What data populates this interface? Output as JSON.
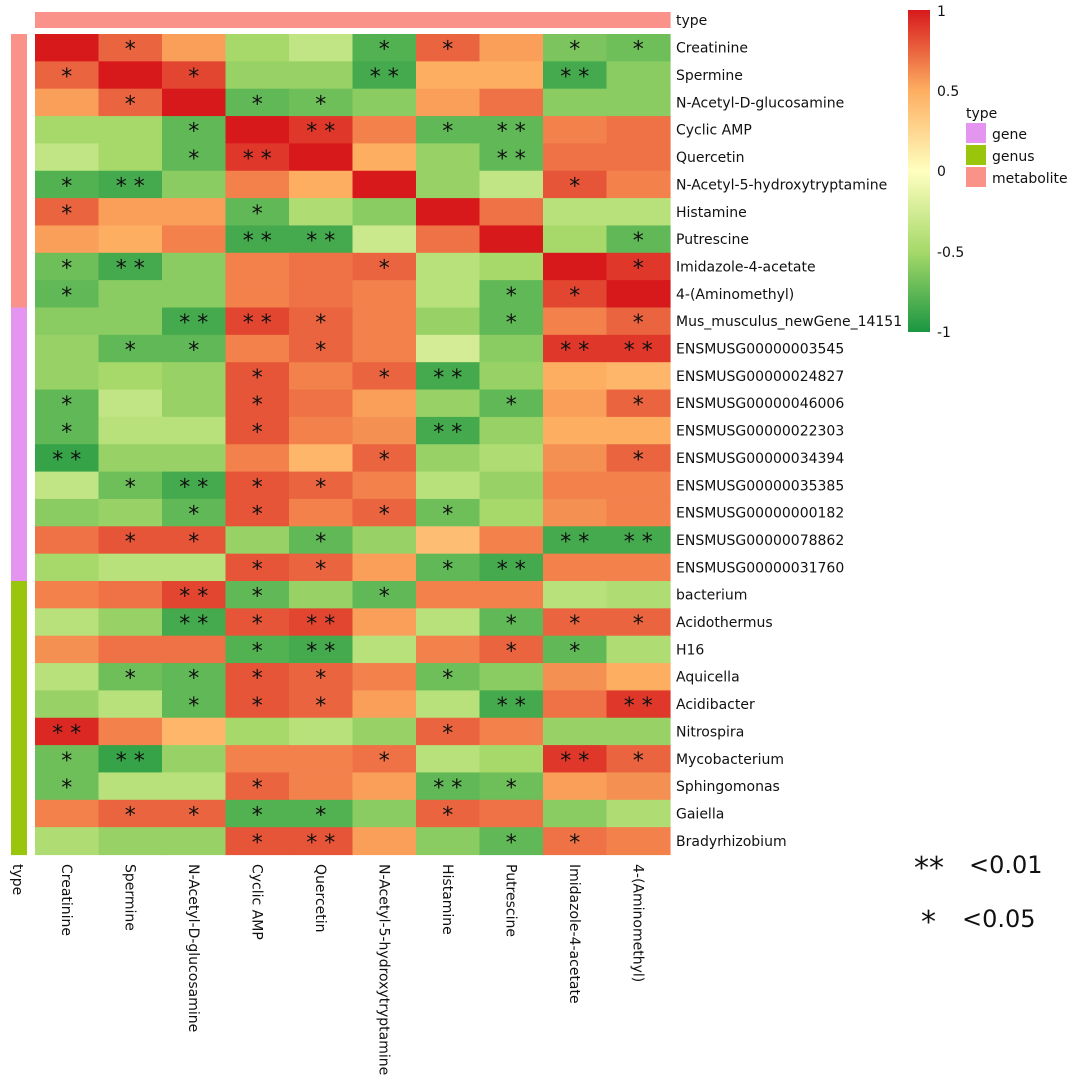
{
  "chart_data": {
    "type": "heatmap",
    "row_annotation_title": "type",
    "col_annotation_title": "type",
    "columns": [
      "Creatinine",
      "Spermine",
      "N-Acetyl-D-glucosamine",
      "Cyclic AMP",
      "Quercetin",
      "N-Acetyl-5-hydroxytryptamine",
      "Histamine",
      "Putrescine",
      "Imidazole-4-acetate",
      "4-(Aminomethyl)"
    ],
    "column_types": [
      "metabolite",
      "metabolite",
      "metabolite",
      "metabolite",
      "metabolite",
      "metabolite",
      "metabolite",
      "metabolite",
      "metabolite",
      "metabolite"
    ],
    "rows": [
      "Creatinine",
      "Spermine",
      "N-Acetyl-D-glucosamine",
      "Cyclic AMP",
      "Quercetin",
      "N-Acetyl-5-hydroxytryptamine",
      "Histamine",
      "Putrescine",
      "Imidazole-4-acetate",
      "4-(Aminomethyl)",
      "Mus_musculus_newGene_14151",
      "ENSMUSG00000003545",
      "ENSMUSG00000024827",
      "ENSMUSG00000046006",
      "ENSMUSG00000022303",
      "ENSMUSG00000034394",
      "ENSMUSG00000035385",
      "ENSMUSG00000000182",
      "ENSMUSG00000078862",
      "ENSMUSG00000031760",
      "bacterium",
      "Acidothermus",
      "H16",
      "Aquicella",
      "Acidibacter",
      "Nitrospira",
      "Mycobacterium",
      "Sphingomonas",
      "Gaiella",
      "Bradyrhizobium"
    ],
    "row_types": [
      "metabolite",
      "metabolite",
      "metabolite",
      "metabolite",
      "metabolite",
      "metabolite",
      "metabolite",
      "metabolite",
      "metabolite",
      "metabolite",
      "gene",
      "gene",
      "gene",
      "gene",
      "gene",
      "gene",
      "gene",
      "gene",
      "gene",
      "gene",
      "genus",
      "genus",
      "genus",
      "genus",
      "genus",
      "genus",
      "genus",
      "genus",
      "genus",
      "genus"
    ],
    "values": [
      [
        1.0,
        0.75,
        0.55,
        -0.5,
        -0.35,
        -0.8,
        0.75,
        0.55,
        -0.65,
        -0.7
      ],
      [
        0.75,
        1.0,
        0.85,
        -0.55,
        -0.55,
        -0.85,
        0.5,
        0.5,
        -0.85,
        -0.6
      ],
      [
        0.55,
        0.75,
        1.0,
        -0.75,
        -0.7,
        -0.6,
        0.55,
        0.7,
        -0.6,
        -0.6
      ],
      [
        -0.5,
        -0.5,
        -0.75,
        1.0,
        0.9,
        0.65,
        -0.75,
        -0.75,
        0.65,
        0.7
      ],
      [
        -0.35,
        -0.5,
        -0.75,
        0.9,
        1.0,
        0.5,
        -0.55,
        -0.75,
        0.7,
        0.7
      ],
      [
        -0.8,
        -0.85,
        -0.6,
        0.65,
        0.5,
        1.0,
        -0.55,
        -0.35,
        0.8,
        0.65
      ],
      [
        0.75,
        0.55,
        0.55,
        -0.75,
        -0.45,
        -0.6,
        1.0,
        0.7,
        -0.4,
        -0.4
      ],
      [
        0.55,
        0.5,
        0.65,
        -0.85,
        -0.85,
        -0.3,
        0.7,
        1.0,
        -0.5,
        -0.75
      ],
      [
        -0.7,
        -0.85,
        -0.6,
        0.65,
        0.7,
        0.75,
        -0.4,
        -0.5,
        1.0,
        0.9
      ],
      [
        -0.75,
        -0.6,
        -0.6,
        0.65,
        0.7,
        0.65,
        -0.4,
        -0.75,
        0.85,
        1.0
      ],
      [
        -0.6,
        -0.6,
        -0.85,
        0.85,
        0.75,
        0.65,
        -0.55,
        -0.75,
        0.65,
        0.75
      ],
      [
        -0.55,
        -0.75,
        -0.75,
        0.65,
        0.75,
        0.65,
        -0.25,
        -0.6,
        0.9,
        0.9
      ],
      [
        -0.55,
        -0.5,
        -0.55,
        0.8,
        0.65,
        0.75,
        -0.85,
        -0.55,
        0.5,
        0.45
      ],
      [
        -0.75,
        -0.35,
        -0.55,
        0.8,
        0.7,
        0.55,
        -0.55,
        -0.75,
        0.55,
        0.75
      ],
      [
        -0.75,
        -0.4,
        -0.4,
        0.8,
        0.65,
        0.6,
        -0.85,
        -0.55,
        0.5,
        0.5
      ],
      [
        -0.9,
        -0.55,
        -0.55,
        0.65,
        0.45,
        0.75,
        -0.55,
        -0.45,
        0.6,
        0.75
      ],
      [
        -0.35,
        -0.7,
        -0.85,
        0.8,
        0.75,
        0.65,
        -0.4,
        -0.55,
        0.65,
        0.65
      ],
      [
        -0.6,
        -0.55,
        -0.75,
        0.8,
        0.65,
        0.75,
        -0.7,
        -0.5,
        0.6,
        0.65
      ],
      [
        0.7,
        0.8,
        0.8,
        -0.55,
        -0.75,
        -0.55,
        0.4,
        0.65,
        -0.85,
        -0.85
      ],
      [
        -0.5,
        -0.4,
        -0.4,
        0.8,
        0.75,
        0.55,
        -0.75,
        -0.85,
        0.65,
        0.65
      ],
      [
        0.65,
        0.7,
        0.85,
        -0.75,
        -0.55,
        -0.75,
        0.65,
        0.65,
        -0.4,
        -0.45
      ],
      [
        -0.4,
        -0.55,
        -0.85,
        0.8,
        0.85,
        0.55,
        -0.4,
        -0.75,
        0.75,
        0.75
      ],
      [
        0.6,
        0.7,
        0.7,
        -0.8,
        -0.85,
        -0.4,
        0.65,
        0.75,
        -0.75,
        -0.45
      ],
      [
        -0.4,
        -0.7,
        -0.75,
        0.8,
        0.75,
        0.65,
        -0.7,
        -0.6,
        0.6,
        0.5
      ],
      [
        -0.55,
        -0.4,
        -0.75,
        0.8,
        0.75,
        0.55,
        -0.4,
        -0.85,
        0.7,
        0.9
      ],
      [
        0.95,
        0.65,
        0.45,
        -0.5,
        -0.4,
        -0.55,
        0.75,
        0.65,
        -0.55,
        -0.55
      ],
      [
        -0.7,
        -0.9,
        -0.55,
        0.65,
        0.65,
        0.7,
        -0.4,
        -0.5,
        0.9,
        0.75
      ],
      [
        -0.7,
        -0.4,
        -0.4,
        0.75,
        0.65,
        0.55,
        -0.75,
        -0.7,
        0.55,
        0.6
      ],
      [
        0.65,
        0.75,
        0.75,
        -0.8,
        -0.8,
        -0.6,
        0.75,
        0.7,
        -0.6,
        -0.45
      ],
      [
        -0.45,
        -0.55,
        -0.55,
        0.8,
        0.8,
        0.55,
        -0.6,
        -0.75,
        0.7,
        0.65
      ]
    ],
    "significance": [
      [
        "",
        "*",
        "",
        "",
        "",
        "*",
        "*",
        "",
        "*",
        "*"
      ],
      [
        "*",
        "",
        "*",
        "",
        "",
        "**",
        "",
        "",
        "**",
        ""
      ],
      [
        "",
        "*",
        "",
        "*",
        "*",
        "",
        "",
        "",
        "",
        ""
      ],
      [
        "",
        "",
        "*",
        "",
        "**",
        "",
        "*",
        "**",
        "",
        ""
      ],
      [
        "",
        "",
        "*",
        "**",
        "",
        "",
        "",
        "**",
        "",
        ""
      ],
      [
        "*",
        "**",
        "",
        "",
        "",
        "",
        "",
        "",
        "*",
        ""
      ],
      [
        "*",
        "",
        "",
        "*",
        "",
        "",
        "",
        "",
        "",
        ""
      ],
      [
        "",
        "",
        "",
        "**",
        "**",
        "",
        "",
        "",
        "",
        "*"
      ],
      [
        "*",
        "**",
        "",
        "",
        "",
        "*",
        "",
        "",
        "",
        "*"
      ],
      [
        "*",
        "",
        "",
        "",
        "",
        "",
        "",
        "*",
        "*",
        ""
      ],
      [
        "",
        "",
        "**",
        "**",
        "*",
        "",
        "",
        "*",
        "",
        "*"
      ],
      [
        "",
        "*",
        "*",
        "",
        "*",
        "",
        "",
        "",
        "**",
        "**"
      ],
      [
        "",
        "",
        "",
        "*",
        "",
        "*",
        "**",
        "",
        "",
        ""
      ],
      [
        "*",
        "",
        "",
        "*",
        "",
        "",
        "",
        "*",
        "",
        "*"
      ],
      [
        "*",
        "",
        "",
        "*",
        "",
        "",
        "**",
        "",
        "",
        ""
      ],
      [
        "**",
        "",
        "",
        "",
        "",
        "*",
        "",
        "",
        "",
        "*"
      ],
      [
        "",
        "*",
        "**",
        "*",
        "*",
        "",
        "",
        "",
        "",
        ""
      ],
      [
        "",
        "",
        "*",
        "*",
        "",
        "*",
        "*",
        "",
        "",
        ""
      ],
      [
        "",
        "*",
        "*",
        "",
        "*",
        "",
        "",
        "",
        "**",
        "**"
      ],
      [
        "",
        "",
        "",
        "*",
        "*",
        "",
        "*",
        "**",
        "",
        ""
      ],
      [
        "",
        "",
        "**",
        "*",
        "",
        "*",
        "",
        "",
        "",
        ""
      ],
      [
        "",
        "",
        "**",
        "*",
        "**",
        "",
        "",
        "*",
        "*",
        "*"
      ],
      [
        "",
        "",
        "",
        "*",
        "**",
        "",
        "",
        "*",
        "*",
        ""
      ],
      [
        "",
        "*",
        "*",
        "*",
        "*",
        "",
        "*",
        "",
        "",
        ""
      ],
      [
        "",
        "",
        "*",
        "*",
        "*",
        "",
        "",
        "**",
        "",
        "**"
      ],
      [
        "**",
        "",
        "",
        "",
        "",
        "",
        "*",
        "",
        "",
        ""
      ],
      [
        "*",
        "**",
        "",
        "",
        "",
        "*",
        "",
        "",
        "**",
        "*"
      ],
      [
        "*",
        "",
        "",
        "*",
        "",
        "",
        "**",
        "*",
        "",
        ""
      ],
      [
        "",
        "*",
        "*",
        "*",
        "*",
        "",
        "*",
        "",
        "",
        ""
      ],
      [
        "",
        "",
        "",
        "*",
        "**",
        "",
        "",
        "*",
        "*",
        ""
      ]
    ],
    "colorbar": {
      "range": [
        -1,
        1
      ],
      "ticks": [
        1,
        0.5,
        0,
        -0.5,
        -1
      ],
      "tick_labels": [
        "1",
        "0.5",
        "0",
        "-0.5",
        "-1"
      ],
      "colors": [
        "#1a9641",
        "#a6d96a",
        "#ffffbf",
        "#fdae61",
        "#d7191c"
      ]
    },
    "type_legend": {
      "title": "type",
      "entries": [
        {
          "label": "gene",
          "color": "#e495f0"
        },
        {
          "label": "genus",
          "color": "#99c60d"
        },
        {
          "label": "metabolite",
          "color": "#fb928a"
        }
      ]
    },
    "significance_legend": [
      {
        "symbol": "**",
        "label": "<0.01"
      },
      {
        "symbol": "*",
        "label": "<0.05"
      }
    ]
  }
}
